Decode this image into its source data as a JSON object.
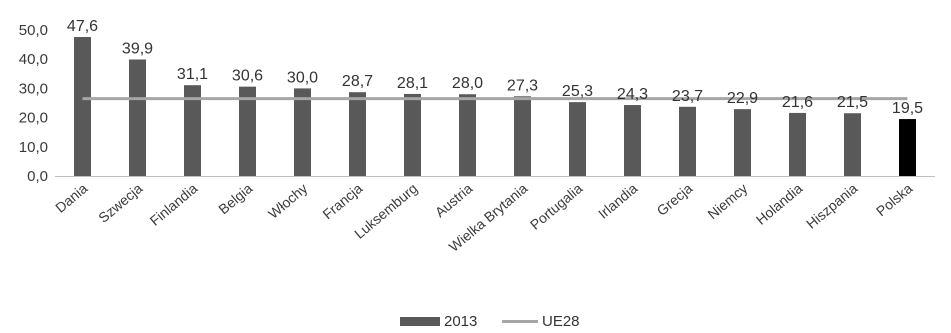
{
  "chart_data": {
    "type": "bar",
    "categories": [
      "Dania",
      "Szwecja",
      "Finlandia",
      "Belgia",
      "Włochy",
      "Francja",
      "Luksemburg",
      "Austria",
      "Wielka Brytania",
      "Portugalia",
      "Irlandia",
      "Grecja",
      "Niemcy",
      "Holandia",
      "Hiszpania",
      "Polska"
    ],
    "series": [
      {
        "name": "2013",
        "values": [
          47.6,
          39.9,
          31.1,
          30.6,
          30.0,
          28.7,
          28.1,
          28.0,
          27.3,
          25.3,
          24.3,
          23.7,
          22.9,
          21.6,
          21.5,
          19.5
        ],
        "labels": [
          "47,6",
          "39,9",
          "31,1",
          "30,6",
          "30,0",
          "28,7",
          "28,1",
          "28,0",
          "27,3",
          "25,3",
          "24,3",
          "23,7",
          "22,9",
          "21,6",
          "21,5",
          "19,5"
        ],
        "color": "#595959",
        "highlight_color": "#000000",
        "highlight_category": "Polska"
      },
      {
        "name": "UE28",
        "type": "line",
        "value": 26.5,
        "color": "#a6a6a6"
      }
    ],
    "ylim": [
      0,
      50
    ],
    "yticks": [
      "0,0",
      "10,0",
      "20,0",
      "30,0",
      "40,0",
      "50,0"
    ],
    "ytick_values": [
      0,
      10,
      20,
      30,
      40,
      50
    ],
    "grid": false,
    "legend": "bottom",
    "title": "",
    "xlabel": "",
    "ylabel": ""
  }
}
